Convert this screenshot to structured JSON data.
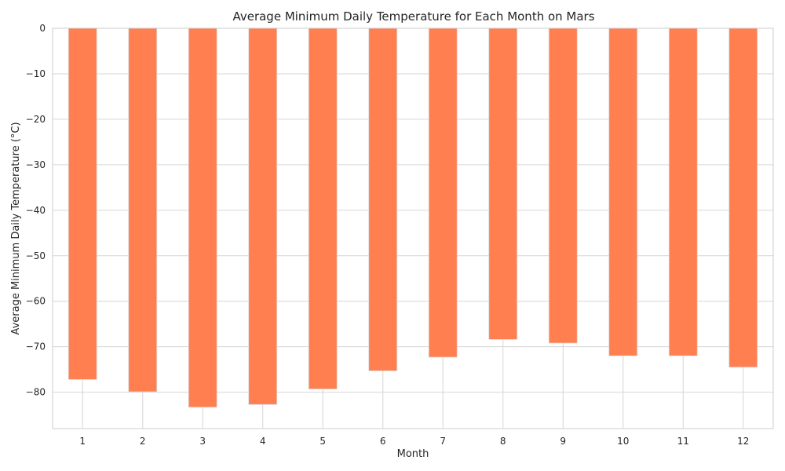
{
  "chart_data": {
    "type": "bar",
    "title": "Average Minimum Daily Temperature for Each Month on Mars",
    "xlabel": "Month",
    "ylabel": "Average Minimum Daily Temperature (°C)",
    "categories": [
      "1",
      "2",
      "3",
      "4",
      "5",
      "6",
      "7",
      "8",
      "9",
      "10",
      "11",
      "12"
    ],
    "values": [
      -77.2,
      -79.9,
      -83.3,
      -82.7,
      -79.3,
      -75.3,
      -72.3,
      -68.4,
      -69.2,
      -72.0,
      -72.0,
      -74.5
    ],
    "ylim": [
      -88,
      0
    ],
    "yticks": [
      0,
      -10,
      -20,
      -30,
      -40,
      -50,
      -60,
      -70,
      -80
    ],
    "grid": true,
    "legend": "none",
    "bar_color": "#FF7F50",
    "grid_color": "#d6d6d6"
  }
}
